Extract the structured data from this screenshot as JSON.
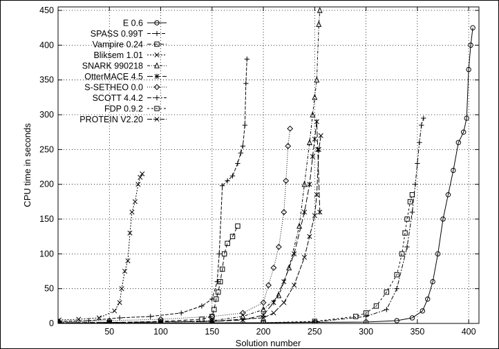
{
  "chart_data": {
    "type": "line",
    "xlabel": "Solution number",
    "ylabel": "CPU time in seconds",
    "xlim": [
      0,
      410
    ],
    "ylim": [
      0,
      455
    ],
    "xticks": [
      50,
      100,
      150,
      200,
      250,
      300,
      350,
      400
    ],
    "yticks": [
      0,
      50,
      100,
      150,
      200,
      250,
      300,
      350,
      400,
      450
    ],
    "grid": true,
    "legend_position": "top-left",
    "series": [
      {
        "name": "E 0.6",
        "marker": "circle",
        "x": [
          1,
          50,
          100,
          150,
          200,
          250,
          300,
          330,
          345,
          355,
          360,
          365,
          370,
          375,
          380,
          385,
          390,
          395,
          398,
          400,
          402,
          404
        ],
        "y": [
          0,
          0.2,
          0.4,
          0.7,
          1.0,
          1.5,
          2,
          4,
          8,
          18,
          35,
          60,
          100,
          150,
          185,
          220,
          260,
          275,
          295,
          365,
          400,
          425
        ]
      },
      {
        "name": "SPASS 0.99T",
        "marker": "plus",
        "x": [
          1,
          30,
          60,
          90,
          120,
          140,
          150,
          155,
          157,
          160,
          165,
          170,
          175,
          178,
          180,
          182,
          183,
          184
        ],
        "y": [
          3,
          4,
          8,
          10,
          15,
          25,
          35,
          60,
          100,
          198,
          205,
          212,
          230,
          245,
          255,
          285,
          345,
          380
        ]
      },
      {
        "name": "Vampire 0.24",
        "marker": "square",
        "x": [
          1,
          50,
          100,
          140,
          150,
          152,
          154,
          156,
          158,
          160,
          162,
          165,
          170,
          175
        ],
        "y": [
          0,
          1,
          3,
          6,
          10,
          20,
          35,
          45,
          60,
          78,
          100,
          115,
          125,
          140
        ]
      },
      {
        "name": "Bliksem 1.01",
        "marker": "x",
        "x": [
          1,
          20,
          40,
          55,
          60,
          62,
          65,
          68,
          70,
          72,
          75,
          78,
          80,
          82
        ],
        "y": [
          5,
          6,
          8,
          18,
          30,
          50,
          75,
          90,
          130,
          160,
          175,
          200,
          210,
          215
        ]
      },
      {
        "name": "SNARK 990218",
        "marker": "triangle",
        "x": [
          1,
          50,
          100,
          150,
          180,
          200,
          215,
          225,
          235,
          240,
          245,
          248,
          250,
          252,
          254,
          255
        ],
        "y": [
          1,
          1.5,
          2,
          4,
          10,
          20,
          40,
          80,
          140,
          200,
          260,
          300,
          325,
          350,
          430,
          450
        ]
      },
      {
        "name": "OtterMACE 4.5",
        "marker": "asterisk",
        "x": [
          1,
          50,
          100,
          150,
          180,
          200,
          210,
          220,
          230,
          240,
          245,
          248,
          250,
          252,
          253,
          255
        ],
        "y": [
          1,
          1.5,
          2,
          3,
          5,
          12,
          30,
          60,
          100,
          160,
          200,
          240,
          265,
          290,
          250,
          160
        ]
      },
      {
        "name": "S-SETHEO 0.0",
        "marker": "diamond",
        "x": [
          1,
          50,
          100,
          150,
          180,
          200,
          205,
          210,
          215,
          220,
          222,
          224,
          226
        ],
        "y": [
          2,
          4,
          6,
          10,
          15,
          30,
          55,
          80,
          110,
          160,
          205,
          255,
          280
        ]
      },
      {
        "name": "SCOTT 4.4.2",
        "marker": "plus",
        "x": [
          1,
          100,
          200,
          250,
          300,
          320,
          330,
          340,
          345,
          348,
          350,
          352,
          354,
          356
        ],
        "y": [
          0,
          0.5,
          1,
          2,
          10,
          20,
          50,
          110,
          160,
          200,
          230,
          260,
          285,
          295
        ]
      },
      {
        "name": "FDP 0.9.2",
        "marker": "square",
        "x": [
          1,
          100,
          200,
          250,
          290,
          300,
          310,
          320,
          330,
          335,
          338,
          340,
          343,
          345
        ],
        "y": [
          0,
          0.5,
          1,
          3,
          10,
          15,
          25,
          45,
          70,
          100,
          130,
          150,
          175,
          185
        ]
      },
      {
        "name": "PROTEIN V2.20",
        "marker": "x",
        "x": [
          1,
          50,
          100,
          150,
          200,
          210,
          220,
          230,
          240,
          245,
          250,
          252,
          254,
          256
        ],
        "y": [
          0,
          1,
          2,
          3,
          8,
          15,
          30,
          55,
          95,
          125,
          155,
          185,
          250,
          270
        ]
      }
    ]
  }
}
